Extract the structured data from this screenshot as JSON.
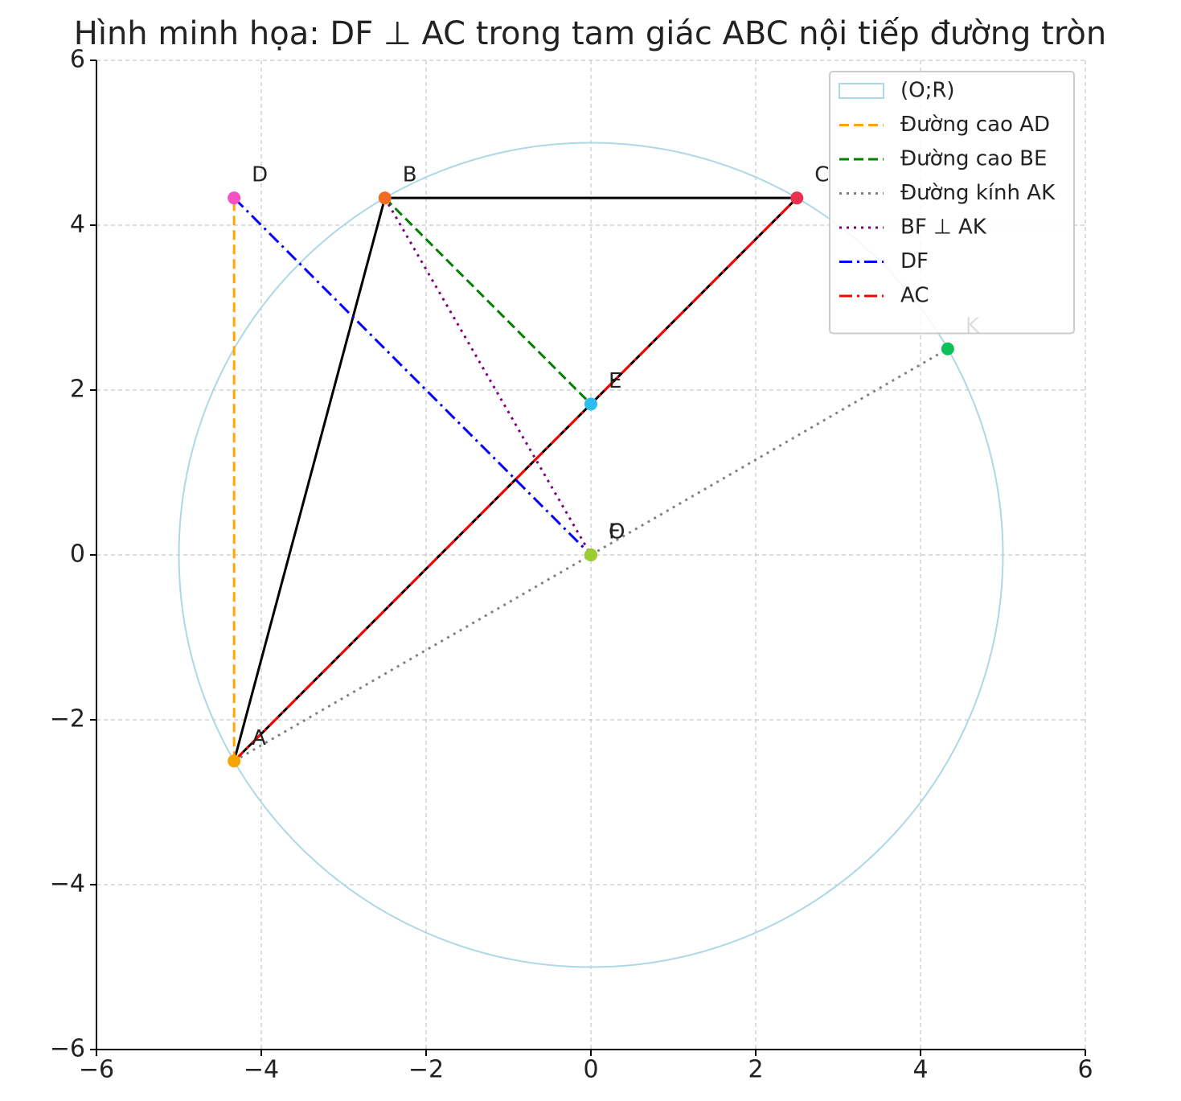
{
  "chart_data": {
    "type": "geometry",
    "title": "Hình minh họa: DF ⊥ AC trong tam giác ABC nội tiếp đường tròn",
    "xlim": [
      -6,
      6
    ],
    "ylim": [
      -6,
      6
    ],
    "xticks": [
      {
        "value": -6,
        "label": "−6"
      },
      {
        "value": -4,
        "label": "−4"
      },
      {
        "value": -2,
        "label": "−2"
      },
      0,
      2,
      4,
      6
    ],
    "yticks": [
      {
        "value": -6,
        "label": "−6"
      },
      {
        "value": -4,
        "label": "−4"
      },
      {
        "value": -2,
        "label": "−2"
      },
      0,
      2,
      4,
      6
    ],
    "grid": true,
    "legend": "upper right",
    "circle": {
      "name": "(O;R)",
      "color": "#add8e6",
      "center": [
        0,
        0
      ],
      "radius": 5
    },
    "triangle": {
      "color": "#000000",
      "x": [
        -4.33,
        -2.5,
        2.5,
        -4.33
      ],
      "y": [
        -2.5,
        4.33,
        4.33,
        -2.5
      ]
    },
    "series": [
      {
        "name": "Đường cao AD",
        "color": "#ffa500",
        "style": "dashed",
        "x": [
          -4.33,
          -4.33
        ],
        "y": [
          -2.5,
          4.33
        ]
      },
      {
        "name": "Đường cao BE",
        "color": "#008000",
        "style": "dashed",
        "x": [
          -2.5,
          0
        ],
        "y": [
          4.33,
          1.83
        ]
      },
      {
        "name": "Đường kính AK",
        "color": "#808080",
        "style": "dotted",
        "x": [
          -4.33,
          4.33
        ],
        "y": [
          -2.5,
          2.5
        ]
      },
      {
        "name": "BF ⊥ AK",
        "color": "#800080",
        "style": "dotted",
        "x": [
          -2.5,
          0
        ],
        "y": [
          4.33,
          0
        ]
      },
      {
        "name": "DF",
        "color": "#0000ff",
        "style": "dashdot",
        "x": [
          -4.33,
          0
        ],
        "y": [
          4.33,
          0
        ]
      },
      {
        "name": "AC",
        "color": "#ff0000",
        "style": "dashdot",
        "x": [
          -4.33,
          2.5
        ],
        "y": [
          -2.5,
          4.33
        ]
      }
    ],
    "points": [
      {
        "label": "A",
        "x": -4.33,
        "y": -2.5,
        "color": "#f5a500"
      },
      {
        "label": "B",
        "x": -2.5,
        "y": 4.33,
        "color": "#f26b21"
      },
      {
        "label": "C",
        "x": 2.5,
        "y": 4.33,
        "color": "#e8304f"
      },
      {
        "label": "D",
        "x": -4.33,
        "y": 4.33,
        "color": "#f54fc2"
      },
      {
        "label": "E",
        "x": 0,
        "y": 1.83,
        "color": "#2bbcf0"
      },
      {
        "label": "F",
        "x": 0,
        "y": 0,
        "color": "#9acd32"
      },
      {
        "label": "O",
        "x": 0,
        "y": 0,
        "color": "#9acd32"
      },
      {
        "label": "K",
        "x": 4.33,
        "y": 2.5,
        "color": "#0cc05a"
      }
    ]
  }
}
